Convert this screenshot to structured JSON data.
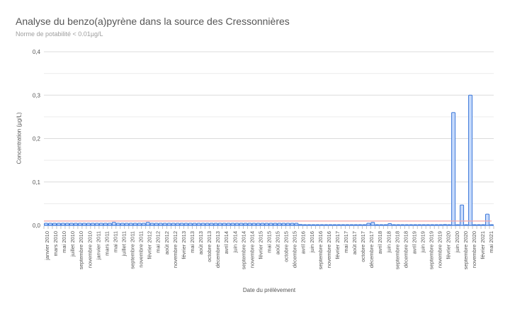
{
  "header": {
    "title": "Analyse du benzo(a)pyrène dans la source des Cressonnières",
    "subtitle": "Norme de potabilité  < 0.01µg/L"
  },
  "colors": {
    "bar_fill": "#c6dafc",
    "bar_stroke": "#3c78d8",
    "norm_line": "#f4a6a6",
    "grid": "#e6e6e6",
    "text": "#555555"
  },
  "chart_data": {
    "type": "bar",
    "title": "Analyse du benzo(a)pyrène dans la source des Cressonnières",
    "subtitle": "Norme de potabilité  < 0.01µg/L",
    "xlabel": "Date du prélèvement",
    "ylabel": "Concentration (µg/L)",
    "ylim": [
      0,
      0.4
    ],
    "yticks": [
      "0,0",
      "0,1",
      "0,2",
      "0,3",
      "0,4"
    ],
    "grid": true,
    "threshold": 0.01,
    "tick_labels": [
      "janvier 2010",
      "mars 2010",
      "mai 2010",
      "juillet 2010",
      "septembre 2010",
      "novembre 2010",
      "janvier 2011",
      "mars 2011",
      "mai 2011",
      "juillet 2011",
      "septembre 2011",
      "novembre 2011",
      "février 2012",
      "mai 2012",
      "août 2012",
      "novembre 2012",
      "février 2013",
      "mai 2013",
      "août 2013",
      "octobre 2013",
      "décembre 2013",
      "avril 2014",
      "juin 2014",
      "septembre 2014",
      "novembre 2014",
      "février 2015",
      "mai 2015",
      "août 2015",
      "octobre 2015",
      "décembre 2015",
      "avril 2016",
      "juin 2016",
      "septembre 2016",
      "novembre 2016",
      "février 2017",
      "mai 2017",
      "août 2017",
      "octobre 2017",
      "décembre 2017",
      "avril 2018",
      "juin 2018",
      "septembre 2018",
      "décembre 2018",
      "avril 2019",
      "juin 2019",
      "septembre 2019",
      "novembre 2019",
      "février 2020",
      "juin 2020",
      "septembre 2020",
      "novembre 2020",
      "février 2021",
      "mai 2021"
    ],
    "values": [
      0.005,
      0.005,
      0.005,
      0.005,
      0.005,
      0.005,
      0.005,
      0.005,
      0.005,
      0.005,
      0.005,
      0.005,
      0.005,
      0.005,
      0.005,
      0.005,
      0.007,
      0.005,
      0.005,
      0.005,
      0.005,
      0.005,
      0.005,
      0.005,
      0.007,
      0.005,
      0.005,
      0.005,
      0.005,
      0.005,
      0.005,
      0.005,
      0.005,
      0.005,
      0.005,
      0.005,
      0.005,
      0.005,
      0.005,
      0.005,
      0.005,
      0.005,
      0.005,
      0.005,
      0.005,
      0.005,
      0.005,
      0.005,
      0.005,
      0.005,
      0.005,
      0.005,
      0.005,
      0.005,
      0.005,
      0.005,
      0.005,
      0.005,
      0.005,
      0.005,
      0.002,
      0.001,
      0.001,
      0.001,
      0.001,
      0.0015,
      0.001,
      0.001,
      0.001,
      0.001,
      0.001,
      0.001,
      0.0015,
      0.001,
      0.001,
      0.001,
      0.005,
      0.007,
      0.0005,
      0.0005,
      0.0005,
      0.004,
      0.0005,
      0.0005,
      0.0005,
      0.0005,
      0.0005,
      0.0005,
      0.0005,
      0.0005,
      0.0005,
      0.0005,
      0.0005,
      0.0005,
      0.002,
      0.0005,
      0.26,
      0.0005,
      0.047,
      0.0005,
      0.3,
      0.0005,
      0.0005,
      0.0005,
      0.026,
      0.0005
    ]
  }
}
